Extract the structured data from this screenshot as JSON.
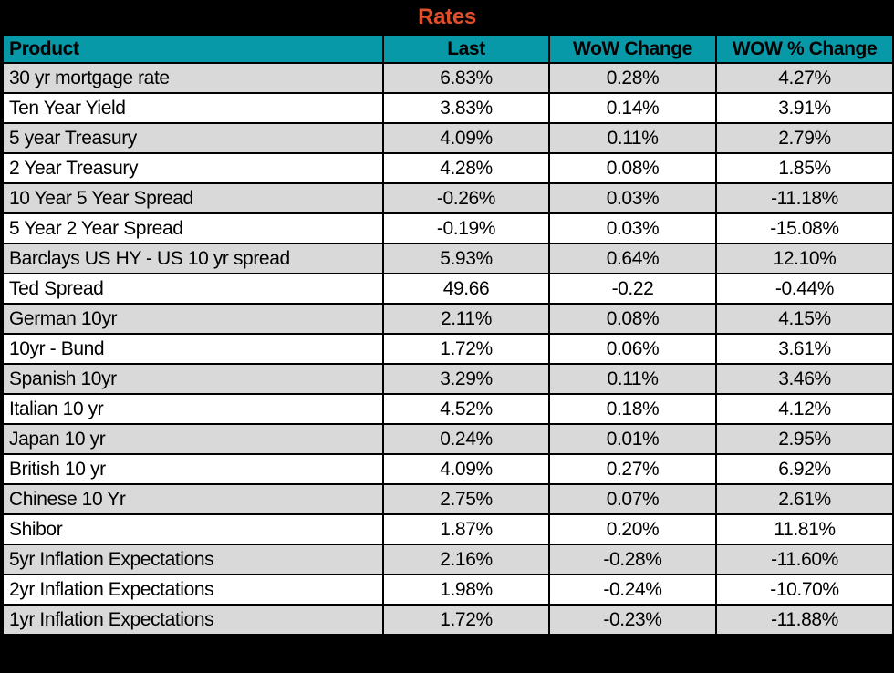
{
  "title": "Rates",
  "colors": {
    "title_text": "#E04F2B",
    "title_bg": "#000000",
    "header_bg": "#0899A8",
    "header_text": "#000000",
    "row_stripe": "#D9D9D9",
    "row_white": "#FFFFFF",
    "grid_border": "#000000"
  },
  "chart_data": {
    "type": "table",
    "title": "Rates",
    "columns": [
      "Product",
      "Last",
      "WoW Change",
      "WOW % Change"
    ],
    "rows": [
      [
        "30 yr mortgage rate",
        "6.83%",
        "0.28%",
        "4.27%"
      ],
      [
        "Ten Year Yield",
        "3.83%",
        "0.14%",
        "3.91%"
      ],
      [
        "5 year Treasury",
        "4.09%",
        "0.11%",
        "2.79%"
      ],
      [
        "2 Year Treasury",
        "4.28%",
        "0.08%",
        "1.85%"
      ],
      [
        "10 Year 5 Year Spread",
        "-0.26%",
        "0.03%",
        "-11.18%"
      ],
      [
        "5 Year 2 Year Spread",
        "-0.19%",
        "0.03%",
        "-15.08%"
      ],
      [
        "Barclays US HY - US 10 yr spread",
        "5.93%",
        "0.64%",
        "12.10%"
      ],
      [
        "Ted Spread",
        "49.66",
        "-0.22",
        "-0.44%"
      ],
      [
        "German 10yr",
        "2.11%",
        "0.08%",
        "4.15%"
      ],
      [
        "10yr - Bund",
        "1.72%",
        "0.06%",
        "3.61%"
      ],
      [
        "Spanish 10yr",
        "3.29%",
        "0.11%",
        "3.46%"
      ],
      [
        "Italian 10 yr",
        "4.52%",
        "0.18%",
        "4.12%"
      ],
      [
        "Japan 10 yr",
        "0.24%",
        "0.01%",
        "2.95%"
      ],
      [
        "British 10 yr",
        "4.09%",
        "0.27%",
        "6.92%"
      ],
      [
        "Chinese 10 Yr",
        "2.75%",
        "0.07%",
        "2.61%"
      ],
      [
        "Shibor",
        "1.87%",
        "0.20%",
        "11.81%"
      ],
      [
        "5yr Inflation Expectations",
        "2.16%",
        "-0.28%",
        "-11.60%"
      ],
      [
        "2yr Inflation Expectations",
        "1.98%",
        "-0.24%",
        "-10.70%"
      ],
      [
        "1yr Inflation Expectations",
        "1.72%",
        "-0.23%",
        "-11.88%"
      ]
    ]
  }
}
